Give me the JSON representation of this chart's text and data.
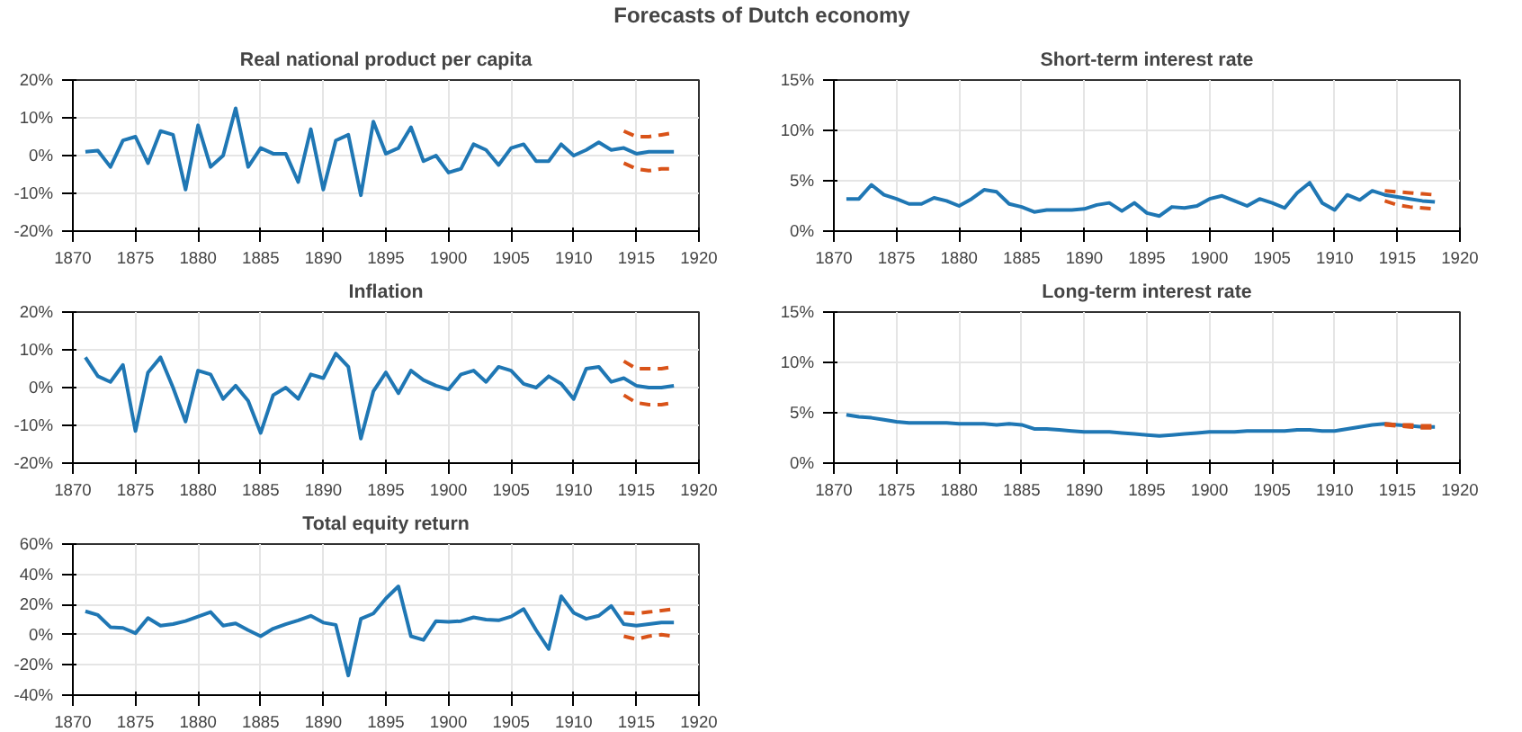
{
  "chart_data": [
    {
      "type": "other",
      "title": "Forecasts of Dutch economy"
    },
    {
      "type": "line",
      "title": "Real national product per capita",
      "grid": true,
      "xlim": [
        1870,
        1920
      ],
      "xticks": [
        1870,
        1875,
        1880,
        1885,
        1890,
        1895,
        1900,
        1905,
        1910,
        1915,
        1920
      ],
      "ylim": [
        -20,
        20
      ],
      "yticks": [
        {
          "value": -20,
          "label": "-20%"
        },
        {
          "value": -10,
          "label": "-10%"
        },
        {
          "value": 0,
          "label": "0%"
        },
        {
          "value": 10,
          "label": "10%"
        },
        {
          "value": 20,
          "label": "20%"
        }
      ],
      "series": [
        {
          "color": "#1f77b4",
          "line_style": "solid",
          "x": [
            1871,
            1872,
            1873,
            1874,
            1875,
            1876,
            1877,
            1878,
            1879,
            1880,
            1881,
            1882,
            1883,
            1884,
            1885,
            1886,
            1887,
            1888,
            1889,
            1890,
            1891,
            1892,
            1893,
            1894,
            1895,
            1896,
            1897,
            1898,
            1899,
            1900,
            1901,
            1902,
            1903,
            1904,
            1905,
            1906,
            1907,
            1908,
            1909,
            1910,
            1911,
            1912,
            1913,
            1914,
            1915,
            1916,
            1917,
            1918
          ],
          "values": [
            1,
            1.3,
            -3,
            4,
            5,
            -2,
            6.5,
            5.5,
            -9,
            8,
            -3,
            0,
            12.5,
            -3,
            2,
            0.5,
            0.5,
            -7,
            7,
            -9,
            4,
            5.5,
            -10.5,
            9,
            0.5,
            2,
            7.5,
            -1.5,
            0,
            -4.5,
            -3.5,
            3,
            1.5,
            -2.5,
            2,
            3,
            -1.5,
            -1.5,
            3,
            0,
            1.5,
            3.5,
            1.5,
            2,
            0.5,
            1,
            1,
            1
          ]
        },
        {
          "color": "#d95319",
          "line_style": "dashed",
          "x": [
            1914,
            1915,
            1916,
            1917,
            1918
          ],
          "values": [
            6.5,
            5,
            5,
            5.5,
            6
          ]
        },
        {
          "color": "#d95319",
          "line_style": "dashed",
          "x": [
            1914,
            1915,
            1916,
            1917,
            1918
          ],
          "values": [
            -2,
            -3.5,
            -4,
            -3.5,
            -3.5
          ]
        }
      ]
    },
    {
      "type": "line",
      "title": "Short-term interest rate",
      "grid": true,
      "xlim": [
        1870,
        1920
      ],
      "xticks": [
        1870,
        1875,
        1880,
        1885,
        1890,
        1895,
        1900,
        1905,
        1910,
        1915,
        1920
      ],
      "ylim": [
        0,
        15
      ],
      "yticks": [
        {
          "value": 0,
          "label": "0%"
        },
        {
          "value": 5,
          "label": "5%"
        },
        {
          "value": 10,
          "label": "10%"
        },
        {
          "value": 15,
          "label": "15%"
        }
      ],
      "series": [
        {
          "color": "#1f77b4",
          "line_style": "solid",
          "x": [
            1871,
            1872,
            1873,
            1874,
            1875,
            1876,
            1877,
            1878,
            1879,
            1880,
            1881,
            1882,
            1883,
            1884,
            1885,
            1886,
            1887,
            1888,
            1889,
            1890,
            1891,
            1892,
            1893,
            1894,
            1895,
            1896,
            1897,
            1898,
            1899,
            1900,
            1901,
            1902,
            1903,
            1904,
            1905,
            1906,
            1907,
            1908,
            1909,
            1910,
            1911,
            1912,
            1913,
            1914,
            1915,
            1916,
            1917,
            1918
          ],
          "values": [
            3.2,
            3.2,
            4.6,
            3.6,
            3.2,
            2.7,
            2.7,
            3.3,
            3,
            2.5,
            3.2,
            4.1,
            3.9,
            2.7,
            2.4,
            1.9,
            2.1,
            2.1,
            2.1,
            2.2,
            2.6,
            2.8,
            2,
            2.8,
            1.8,
            1.5,
            2.4,
            2.3,
            2.5,
            3.2,
            3.5,
            3,
            2.5,
            3.2,
            2.8,
            2.3,
            3.8,
            4.8,
            2.8,
            2.1,
            3.6,
            3.1,
            4,
            3.6,
            3.4,
            3.2,
            3,
            2.9
          ]
        },
        {
          "color": "#d95319",
          "line_style": "dashed",
          "x": [
            1914,
            1915,
            1916,
            1917,
            1918
          ],
          "values": [
            4,
            3.9,
            3.8,
            3.7,
            3.6
          ]
        },
        {
          "color": "#d95319",
          "line_style": "dashed",
          "x": [
            1914,
            1915,
            1916,
            1917,
            1918
          ],
          "values": [
            3,
            2.6,
            2.4,
            2.3,
            2.2
          ]
        }
      ]
    },
    {
      "type": "line",
      "title": "Inflation",
      "grid": true,
      "xlim": [
        1870,
        1920
      ],
      "xticks": [
        1870,
        1875,
        1880,
        1885,
        1890,
        1895,
        1900,
        1905,
        1910,
        1915,
        1920
      ],
      "ylim": [
        -20,
        20
      ],
      "yticks": [
        {
          "value": -20,
          "label": "-20%"
        },
        {
          "value": -10,
          "label": "-10%"
        },
        {
          "value": 0,
          "label": "0%"
        },
        {
          "value": 10,
          "label": "10%"
        },
        {
          "value": 20,
          "label": "20%"
        }
      ],
      "series": [
        {
          "color": "#1f77b4",
          "line_style": "solid",
          "x": [
            1871,
            1872,
            1873,
            1874,
            1875,
            1876,
            1877,
            1878,
            1879,
            1880,
            1881,
            1882,
            1883,
            1884,
            1885,
            1886,
            1887,
            1888,
            1889,
            1890,
            1891,
            1892,
            1893,
            1894,
            1895,
            1896,
            1897,
            1898,
            1899,
            1900,
            1901,
            1902,
            1903,
            1904,
            1905,
            1906,
            1907,
            1908,
            1909,
            1910,
            1911,
            1912,
            1913,
            1914,
            1915,
            1916,
            1917,
            1918
          ],
          "values": [
            8,
            3,
            1.5,
            6,
            -11.5,
            4,
            8,
            0,
            -9,
            4.5,
            3.5,
            -3,
            0.5,
            -3.5,
            -12,
            -2,
            0,
            -3,
            3.5,
            2.5,
            9,
            5.5,
            -13.5,
            -1,
            4,
            -1.5,
            4.5,
            2,
            0.5,
            -0.5,
            3.5,
            4.5,
            1.5,
            5.5,
            4.5,
            1,
            0,
            3,
            1,
            -3,
            5,
            5.5,
            1.5,
            2.5,
            0.5,
            0,
            0,
            0.5
          ]
        },
        {
          "color": "#d95319",
          "line_style": "dashed",
          "x": [
            1914,
            1915,
            1916,
            1917,
            1918
          ],
          "values": [
            7,
            5,
            5,
            5,
            5.5
          ]
        },
        {
          "color": "#d95319",
          "line_style": "dashed",
          "x": [
            1914,
            1915,
            1916,
            1917,
            1918
          ],
          "values": [
            -2,
            -4,
            -4.5,
            -4.5,
            -4
          ]
        }
      ]
    },
    {
      "type": "line",
      "title": "Long-term interest rate",
      "grid": true,
      "xlim": [
        1870,
        1920
      ],
      "xticks": [
        1870,
        1875,
        1880,
        1885,
        1890,
        1895,
        1900,
        1905,
        1910,
        1915,
        1920
      ],
      "ylim": [
        0,
        15
      ],
      "yticks": [
        {
          "value": 0,
          "label": "0%"
        },
        {
          "value": 5,
          "label": "5%"
        },
        {
          "value": 10,
          "label": "10%"
        },
        {
          "value": 15,
          "label": "15%"
        }
      ],
      "series": [
        {
          "color": "#1f77b4",
          "line_style": "solid",
          "x": [
            1871,
            1872,
            1873,
            1874,
            1875,
            1876,
            1877,
            1878,
            1879,
            1880,
            1881,
            1882,
            1883,
            1884,
            1885,
            1886,
            1887,
            1888,
            1889,
            1890,
            1891,
            1892,
            1893,
            1894,
            1895,
            1896,
            1897,
            1898,
            1899,
            1900,
            1901,
            1902,
            1903,
            1904,
            1905,
            1906,
            1907,
            1908,
            1909,
            1910,
            1911,
            1912,
            1913,
            1914,
            1915,
            1916,
            1917,
            1918
          ],
          "values": [
            4.8,
            4.6,
            4.5,
            4.3,
            4.1,
            4,
            4,
            4,
            4,
            3.9,
            3.9,
            3.9,
            3.8,
            3.9,
            3.8,
            3.4,
            3.4,
            3.3,
            3.2,
            3.1,
            3.1,
            3.1,
            3,
            2.9,
            2.8,
            2.7,
            2.8,
            2.9,
            3,
            3.1,
            3.1,
            3.1,
            3.2,
            3.2,
            3.2,
            3.2,
            3.3,
            3.3,
            3.2,
            3.2,
            3.4,
            3.6,
            3.8,
            3.9,
            3.8,
            3.7,
            3.6,
            3.6
          ]
        },
        {
          "color": "#d95319",
          "line_style": "dashed",
          "x": [
            1914,
            1915,
            1916,
            1917,
            1918
          ],
          "values": [
            3.9,
            3.8,
            3.8,
            3.7,
            3.7
          ]
        },
        {
          "color": "#d95319",
          "line_style": "dashed",
          "x": [
            1914,
            1915,
            1916,
            1917,
            1918
          ],
          "values": [
            3.8,
            3.7,
            3.6,
            3.5,
            3.5
          ]
        }
      ]
    },
    {
      "type": "line",
      "title": "Total equity return",
      "grid": true,
      "xlim": [
        1870,
        1920
      ],
      "xticks": [
        1870,
        1875,
        1880,
        1885,
        1890,
        1895,
        1900,
        1905,
        1910,
        1915,
        1920
      ],
      "ylim": [
        -40,
        60
      ],
      "yticks": [
        {
          "value": -40,
          "label": "-40%"
        },
        {
          "value": -20,
          "label": "-20%"
        },
        {
          "value": 0,
          "label": "0%"
        },
        {
          "value": 20,
          "label": "20%"
        },
        {
          "value": 40,
          "label": "40%"
        },
        {
          "value": 60,
          "label": "60%"
        }
      ],
      "series": [
        {
          "color": "#1f77b4",
          "line_style": "solid",
          "x": [
            1871,
            1872,
            1873,
            1874,
            1875,
            1876,
            1877,
            1878,
            1879,
            1880,
            1881,
            1882,
            1883,
            1884,
            1885,
            1886,
            1887,
            1888,
            1889,
            1890,
            1891,
            1892,
            1893,
            1894,
            1895,
            1896,
            1897,
            1898,
            1899,
            1900,
            1901,
            1902,
            1903,
            1904,
            1905,
            1906,
            1907,
            1908,
            1909,
            1910,
            1911,
            1912,
            1913,
            1914,
            1915,
            1916,
            1917,
            1918
          ],
          "values": [
            15.5,
            13,
            5,
            4.5,
            1,
            11,
            6,
            7,
            9,
            12,
            15,
            6,
            7.5,
            3,
            -1,
            4,
            7,
            9.5,
            12.5,
            8,
            6.5,
            -27,
            10.5,
            14,
            24,
            32,
            -1,
            -3.5,
            9,
            8.5,
            9,
            11.5,
            10,
            9.5,
            12,
            17,
            3,
            -9.5,
            25.5,
            14.5,
            10.5,
            12.5,
            19,
            7,
            6,
            7,
            8,
            8
          ]
        },
        {
          "color": "#d95319",
          "line_style": "dashed",
          "x": [
            1914,
            1915,
            1916,
            1917,
            1918
          ],
          "values": [
            14.5,
            14,
            15,
            16,
            17
          ]
        },
        {
          "color": "#d95319",
          "line_style": "dashed",
          "x": [
            1914,
            1915,
            1916,
            1917,
            1918
          ],
          "values": [
            -1,
            -3,
            -1,
            0,
            -1
          ]
        }
      ]
    }
  ]
}
